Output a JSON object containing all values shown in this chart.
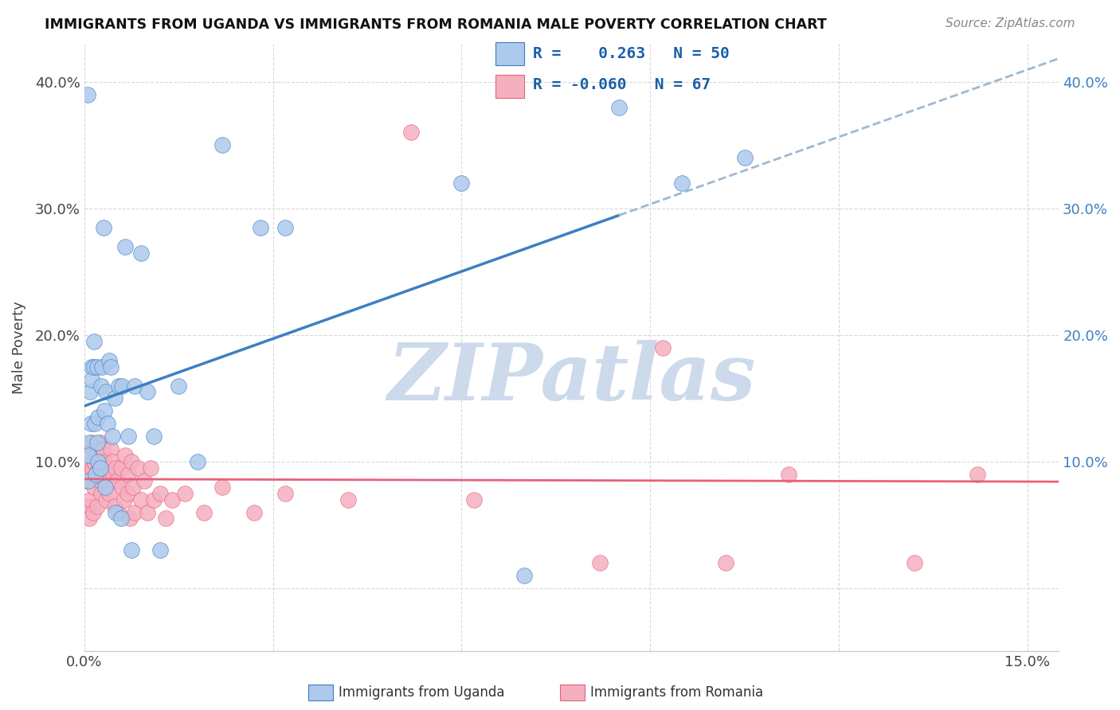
{
  "title": "IMMIGRANTS FROM UGANDA VS IMMIGRANTS FROM ROMANIA MALE POVERTY CORRELATION CHART",
  "source": "Source: ZipAtlas.com",
  "ylabel": "Male Poverty",
  "xlim": [
    0.0,
    0.155
  ],
  "ylim": [
    -0.05,
    0.43
  ],
  "x_ticks": [
    0.0,
    0.03,
    0.06,
    0.09,
    0.12,
    0.15
  ],
  "y_ticks": [
    0.0,
    0.1,
    0.2,
    0.3,
    0.4
  ],
  "legend_R_uganda": " 0.263",
  "legend_N_uganda": "50",
  "legend_R_romania": "-0.060",
  "legend_N_romania": "67",
  "color_uganda": "#adc9eb",
  "color_romania": "#f5b0c0",
  "trendline_uganda_color": "#3d7fc1",
  "trendline_romania_color": "#e8607a",
  "watermark_color": "#ccdaeb",
  "background_color": "#ffffff",
  "grid_color": "#d8d8d8",
  "legend_text_color": "#1a5fa8",
  "uganda_x": [
    0.0008,
    0.0005,
    0.0006,
    0.0007,
    0.0009,
    0.001,
    0.0011,
    0.0012,
    0.0015,
    0.0015,
    0.0017,
    0.0018,
    0.002,
    0.002,
    0.0022,
    0.0022,
    0.0025,
    0.0027,
    0.0028,
    0.003,
    0.0032,
    0.0033,
    0.0035,
    0.0037,
    0.004,
    0.0042,
    0.0045,
    0.0048,
    0.005,
    0.0055,
    0.0058,
    0.006,
    0.0065,
    0.007,
    0.0075,
    0.008,
    0.009,
    0.01,
    0.011,
    0.012,
    0.015,
    0.018,
    0.022,
    0.028,
    0.032,
    0.06,
    0.07,
    0.085,
    0.095,
    0.105
  ],
  "uganda_y": [
    0.115,
    0.39,
    0.085,
    0.105,
    0.155,
    0.13,
    0.175,
    0.165,
    0.175,
    0.195,
    0.13,
    0.09,
    0.175,
    0.115,
    0.135,
    0.1,
    0.095,
    0.16,
    0.175,
    0.285,
    0.14,
    0.08,
    0.155,
    0.13,
    0.18,
    0.175,
    0.12,
    0.15,
    0.06,
    0.16,
    0.055,
    0.16,
    0.27,
    0.12,
    0.03,
    0.16,
    0.265,
    0.155,
    0.12,
    0.03,
    0.16,
    0.1,
    0.35,
    0.285,
    0.285,
    0.32,
    0.01,
    0.38,
    0.32,
    0.34
  ],
  "romania_x": [
    0.0005,
    0.0006,
    0.0007,
    0.0008,
    0.0009,
    0.001,
    0.0011,
    0.0012,
    0.0013,
    0.0014,
    0.0015,
    0.0016,
    0.0018,
    0.002,
    0.0022,
    0.0024,
    0.0025,
    0.0026,
    0.0027,
    0.0028,
    0.003,
    0.0032,
    0.0033,
    0.0035,
    0.0036,
    0.0038,
    0.004,
    0.0042,
    0.0044,
    0.0046,
    0.0048,
    0.005,
    0.0052,
    0.0055,
    0.0058,
    0.006,
    0.0063,
    0.0065,
    0.0068,
    0.007,
    0.0073,
    0.0075,
    0.0078,
    0.008,
    0.0085,
    0.009,
    0.0095,
    0.01,
    0.0105,
    0.011,
    0.012,
    0.013,
    0.014,
    0.016,
    0.019,
    0.022,
    0.027,
    0.032,
    0.042,
    0.052,
    0.062,
    0.082,
    0.092,
    0.102,
    0.112,
    0.132,
    0.142
  ],
  "romania_y": [
    0.085,
    0.09,
    0.065,
    0.055,
    0.07,
    0.1,
    0.11,
    0.115,
    0.095,
    0.06,
    0.1,
    0.08,
    0.11,
    0.065,
    0.09,
    0.095,
    0.115,
    0.085,
    0.075,
    0.105,
    0.11,
    0.1,
    0.085,
    0.07,
    0.095,
    0.09,
    0.075,
    0.11,
    0.1,
    0.09,
    0.065,
    0.095,
    0.085,
    0.06,
    0.095,
    0.08,
    0.07,
    0.105,
    0.075,
    0.09,
    0.055,
    0.1,
    0.08,
    0.06,
    0.095,
    0.07,
    0.085,
    0.06,
    0.095,
    0.07,
    0.075,
    0.055,
    0.07,
    0.075,
    0.06,
    0.08,
    0.06,
    0.075,
    0.07,
    0.36,
    0.07,
    0.02,
    0.19,
    0.02,
    0.09,
    0.02,
    0.09
  ],
  "trendline_solid_end_x": 0.085,
  "trendline_dashed_color": "#a0b8d0"
}
